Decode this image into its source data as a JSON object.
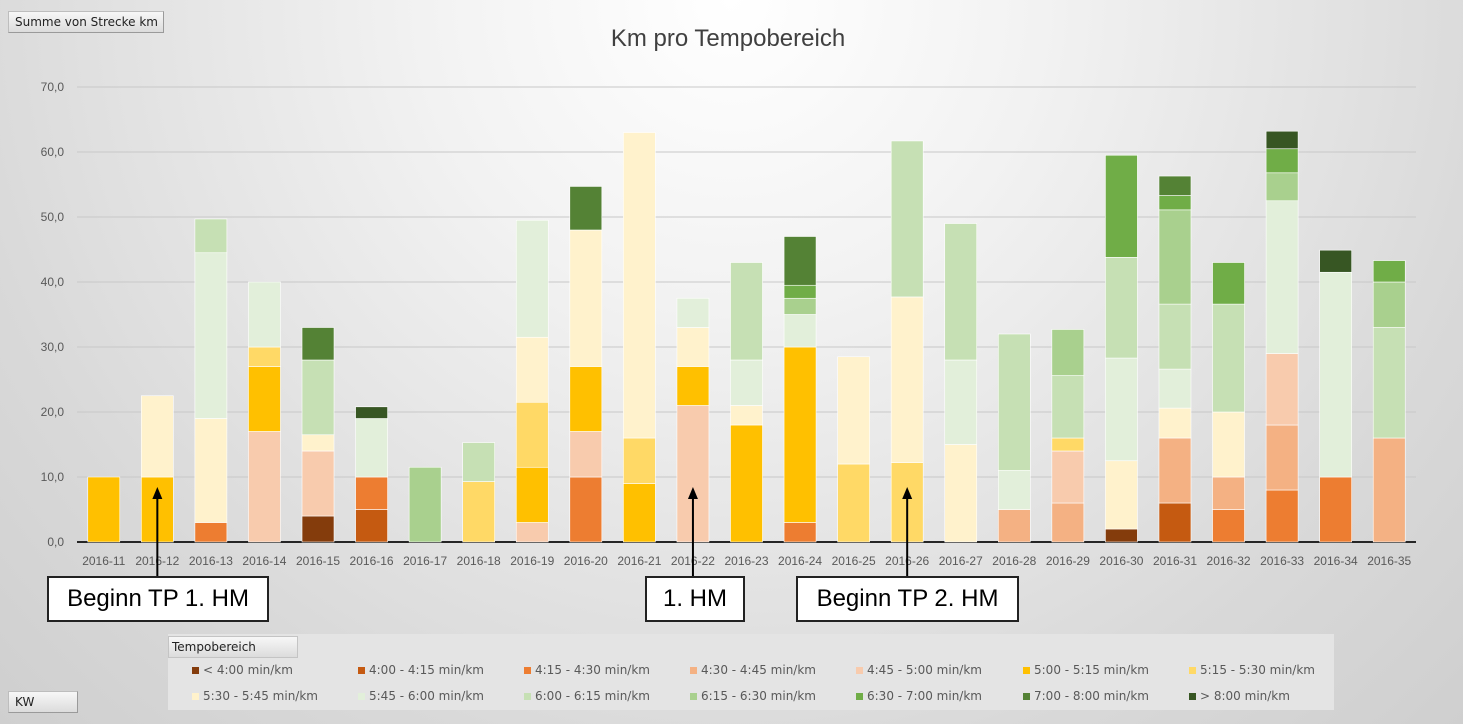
{
  "pivot": {
    "value_field": "Summe von Strecke km",
    "axis_field": "KW",
    "legend_field": "Tempobereich"
  },
  "chart_data": {
    "type": "bar",
    "stacked": true,
    "title": "Km pro Tempobereich",
    "xlabel": "",
    "ylabel": "",
    "ylim": [
      0,
      70
    ],
    "yticks": [
      "0,0",
      "10,0",
      "20,0",
      "30,0",
      "40,0",
      "50,0",
      "60,0",
      "70,0"
    ],
    "ytick_values": [
      0,
      10,
      20,
      30,
      40,
      50,
      60,
      70
    ],
    "grid": true,
    "legend_position": "bottom",
    "categories": [
      "2016-11",
      "2016-12",
      "2016-13",
      "2016-14",
      "2016-15",
      "2016-16",
      "2016-17",
      "2016-18",
      "2016-19",
      "2016-20",
      "2016-21",
      "2016-22",
      "2016-23",
      "2016-24",
      "2016-25",
      "2016-26",
      "2016-27",
      "2016-28",
      "2016-29",
      "2016-30",
      "2016-31",
      "2016-32",
      "2016-33",
      "2016-34",
      "2016-35"
    ],
    "series": [
      {
        "name": "< 4:00 min/km",
        "color": "#843c0c",
        "values": [
          0,
          0,
          0,
          0,
          4,
          0,
          0,
          0,
          0,
          0,
          0,
          0,
          0,
          0,
          0,
          0,
          0,
          0,
          0,
          2,
          0,
          0,
          0,
          0,
          0
        ]
      },
      {
        "name": "4:00 - 4:15 min/km",
        "color": "#c55a11",
        "values": [
          0,
          0,
          0,
          0,
          0,
          5,
          0,
          0,
          0,
          0,
          0,
          0,
          0,
          0,
          0,
          0,
          0,
          0,
          0,
          0,
          6,
          0,
          0,
          0,
          0
        ]
      },
      {
        "name": "4:15 - 4:30 min/km",
        "color": "#ed7d31",
        "values": [
          0,
          0,
          3,
          0,
          0,
          5,
          0,
          0,
          0,
          10,
          0,
          0,
          0,
          3,
          0,
          0,
          0,
          0,
          0,
          0,
          0,
          5,
          8,
          10,
          0
        ]
      },
      {
        "name": "4:30 - 4:45 min/km",
        "color": "#f4b183",
        "values": [
          0,
          0,
          0,
          0,
          0,
          0,
          0,
          0,
          0,
          0,
          0,
          0,
          0,
          0,
          0,
          0,
          0,
          5,
          6,
          0,
          10,
          5,
          10,
          0,
          16
        ]
      },
      {
        "name": "4:45 - 5:00 min/km",
        "color": "#f8cbad",
        "values": [
          0,
          0,
          0,
          17,
          10,
          0,
          0,
          0,
          3,
          7,
          0,
          21,
          0,
          0,
          0,
          0,
          0,
          0,
          8,
          0,
          0,
          0,
          11,
          0,
          0
        ]
      },
      {
        "name": "5:00 - 5:15 min/km",
        "color": "#ffc000",
        "values": [
          10,
          10,
          0,
          10,
          0,
          0,
          0,
          0,
          8.5,
          10,
          9,
          6,
          18,
          27,
          0,
          0,
          0,
          0,
          0,
          0,
          0,
          0,
          0,
          0,
          0
        ]
      },
      {
        "name": "5:15 - 5:30 min/km",
        "color": "#ffd966",
        "values": [
          0,
          0,
          0,
          3,
          0,
          0,
          0,
          9.3,
          10,
          0,
          7,
          0,
          0,
          0,
          12,
          12.2,
          0,
          0,
          2,
          0,
          0,
          0,
          0,
          0,
          0
        ]
      },
      {
        "name": "5:30 - 5:45 min/km",
        "color": "#fff2cc",
        "values": [
          0,
          12.5,
          16,
          0,
          2.5,
          0,
          0,
          0,
          10,
          21,
          47,
          6,
          3,
          0,
          16.5,
          25.5,
          15,
          0,
          0,
          10.5,
          4.6,
          10,
          0,
          0,
          0
        ]
      },
      {
        "name": "5:45 - 6:00 min/km",
        "color": "#e2efda",
        "values": [
          0,
          0,
          25.5,
          10,
          0,
          9,
          0,
          0,
          18,
          0,
          0,
          4.5,
          7,
          5,
          0,
          0,
          13,
          6,
          0,
          15.8,
          6,
          0,
          23.5,
          31.5,
          0
        ]
      },
      {
        "name": "6:00 - 6:15 min/km",
        "color": "#c6e0b4",
        "values": [
          0,
          0,
          5.2,
          0,
          11.5,
          0,
          0,
          6,
          0,
          0,
          0,
          0,
          15,
          0,
          0,
          24,
          21,
          21,
          9.6,
          15.5,
          10,
          16.6,
          0,
          0,
          17
        ]
      },
      {
        "name": "6:15 - 6:30 min/km",
        "color": "#a9d08e",
        "values": [
          0,
          0,
          0,
          0,
          0,
          0,
          11.5,
          0,
          0,
          0,
          0,
          0,
          0,
          2.5,
          0,
          0,
          0,
          0,
          7.1,
          0,
          14.5,
          0,
          4.3,
          0,
          7
        ]
      },
      {
        "name": "6:30 - 7:00 min/km",
        "color": "#70ad47",
        "values": [
          0,
          0,
          0,
          0,
          0,
          0,
          0,
          0,
          0,
          0,
          0,
          0,
          0,
          2,
          0,
          0,
          0,
          0,
          0,
          15.7,
          2.2,
          6.4,
          3.7,
          0,
          3.3
        ]
      },
      {
        "name": "7:00 - 8:00 min/km",
        "color": "#548235",
        "values": [
          0,
          0,
          0,
          0,
          5,
          0,
          0,
          0,
          0,
          6.7,
          0,
          0,
          0,
          7.5,
          0,
          0,
          0,
          0,
          0,
          0,
          3,
          0,
          0,
          0,
          0
        ]
      },
      {
        "name": "> 8:00 min/km",
        "color": "#375623",
        "values": [
          0,
          0,
          0,
          0,
          0,
          1.8,
          0,
          0,
          0,
          0,
          0,
          0,
          0,
          0,
          0,
          0,
          0,
          0,
          0,
          0,
          0,
          0,
          2.7,
          3.4,
          0
        ]
      }
    ]
  },
  "annotations": [
    {
      "label": "Beginn TP 1. HM",
      "category": "2016-12"
    },
    {
      "label": "1. HM",
      "category": "2016-22"
    },
    {
      "label": "Beginn TP 2. HM",
      "category": "2016-26"
    }
  ]
}
